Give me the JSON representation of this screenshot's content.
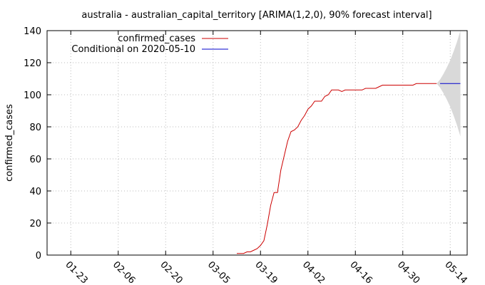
{
  "chart_data": {
    "type": "line",
    "title": "australia - australian_capital_territory [ARIMA(1,2,0), 90% forecast interval]",
    "xlabel": "",
    "ylabel": "confirmed_cases",
    "x_start": "2020-01-16",
    "x_end": "2020-05-19",
    "xticks": [
      "01-23",
      "02-06",
      "02-20",
      "03-05",
      "03-19",
      "04-02",
      "04-16",
      "04-30",
      "05-14"
    ],
    "xtick_dates": [
      "2020-01-23",
      "2020-02-06",
      "2020-02-20",
      "2020-03-05",
      "2020-03-19",
      "2020-04-02",
      "2020-04-16",
      "2020-04-30",
      "2020-05-14"
    ],
    "ylim": [
      0,
      140
    ],
    "yticks": [
      0,
      20,
      40,
      60,
      80,
      100,
      120,
      140
    ],
    "grid": true,
    "legend_position": "top-left",
    "series": [
      {
        "name": "confirmed_cases",
        "color": "#cc0000",
        "points": [
          [
            "2020-03-12",
            1
          ],
          [
            "2020-03-13",
            1
          ],
          [
            "2020-03-14",
            1
          ],
          [
            "2020-03-15",
            2
          ],
          [
            "2020-03-16",
            2
          ],
          [
            "2020-03-17",
            3
          ],
          [
            "2020-03-18",
            4
          ],
          [
            "2020-03-19",
            6
          ],
          [
            "2020-03-20",
            9
          ],
          [
            "2020-03-21",
            19
          ],
          [
            "2020-03-22",
            31
          ],
          [
            "2020-03-23",
            39
          ],
          [
            "2020-03-24",
            39
          ],
          [
            "2020-03-25",
            53
          ],
          [
            "2020-03-26",
            62
          ],
          [
            "2020-03-27",
            71
          ],
          [
            "2020-03-28",
            77
          ],
          [
            "2020-03-29",
            78
          ],
          [
            "2020-03-30",
            80
          ],
          [
            "2020-03-31",
            84
          ],
          [
            "2020-04-01",
            87
          ],
          [
            "2020-04-02",
            91
          ],
          [
            "2020-04-03",
            93
          ],
          [
            "2020-04-04",
            96
          ],
          [
            "2020-04-05",
            96
          ],
          [
            "2020-04-06",
            96
          ],
          [
            "2020-04-07",
            99
          ],
          [
            "2020-04-08",
            100
          ],
          [
            "2020-04-09",
            103
          ],
          [
            "2020-04-10",
            103
          ],
          [
            "2020-04-11",
            103
          ],
          [
            "2020-04-12",
            102
          ],
          [
            "2020-04-13",
            103
          ],
          [
            "2020-04-14",
            103
          ],
          [
            "2020-04-15",
            103
          ],
          [
            "2020-04-16",
            103
          ],
          [
            "2020-04-17",
            103
          ],
          [
            "2020-04-18",
            103
          ],
          [
            "2020-04-19",
            104
          ],
          [
            "2020-04-20",
            104
          ],
          [
            "2020-04-21",
            104
          ],
          [
            "2020-04-22",
            104
          ],
          [
            "2020-04-23",
            105
          ],
          [
            "2020-04-24",
            106
          ],
          [
            "2020-04-25",
            106
          ],
          [
            "2020-04-26",
            106
          ],
          [
            "2020-04-27",
            106
          ],
          [
            "2020-04-28",
            106
          ],
          [
            "2020-04-29",
            106
          ],
          [
            "2020-04-30",
            106
          ],
          [
            "2020-05-01",
            106
          ],
          [
            "2020-05-02",
            106
          ],
          [
            "2020-05-03",
            106
          ],
          [
            "2020-05-04",
            107
          ],
          [
            "2020-05-05",
            107
          ],
          [
            "2020-05-06",
            107
          ],
          [
            "2020-05-07",
            107
          ],
          [
            "2020-05-08",
            107
          ],
          [
            "2020-05-09",
            107
          ],
          [
            "2020-05-10",
            107
          ]
        ]
      },
      {
        "name": "Conditional on 2020-05-10",
        "color": "#0000cc",
        "points": [
          [
            "2020-05-11",
            107
          ],
          [
            "2020-05-12",
            107
          ],
          [
            "2020-05-13",
            107
          ],
          [
            "2020-05-14",
            107
          ],
          [
            "2020-05-15",
            107
          ],
          [
            "2020-05-16",
            107
          ],
          [
            "2020-05-17",
            107
          ]
        ]
      }
    ],
    "forecast_interval": {
      "color": "#d9d9d9",
      "points": [
        [
          "2020-05-10",
          107,
          107
        ],
        [
          "2020-05-11",
          104.5,
          109.5
        ],
        [
          "2020-05-12",
          101,
          113
        ],
        [
          "2020-05-13",
          97,
          117
        ],
        [
          "2020-05-14",
          92.5,
          121.5
        ],
        [
          "2020-05-15",
          87,
          127
        ],
        [
          "2020-05-16",
          81,
          133
        ],
        [
          "2020-05-17",
          74,
          140
        ]
      ]
    }
  }
}
